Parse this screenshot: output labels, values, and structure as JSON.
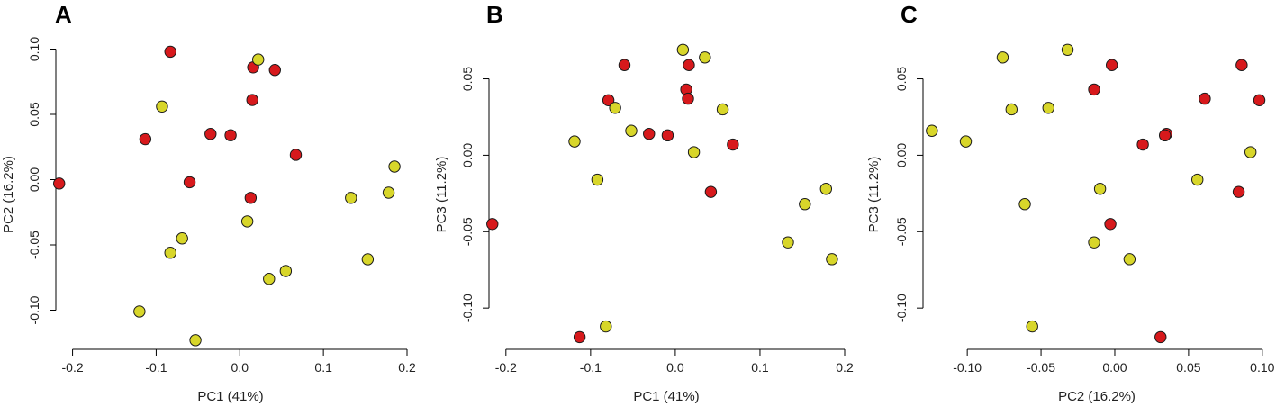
{
  "chart_data": [
    {
      "type": "scatter",
      "panel": "A",
      "xlabel": "PC1 (41%)",
      "ylabel": "PC2 (16.2%)",
      "xlim": [
        -0.22,
        0.2
      ],
      "ylim": [
        -0.13,
        0.11
      ],
      "xticks": [
        -0.2,
        -0.1,
        0.0,
        0.1,
        0.2
      ],
      "xtick_labels": [
        "-0.2",
        "-0.1",
        "0.0",
        "0.1",
        "0.2"
      ],
      "yticks": [
        -0.1,
        -0.05,
        0.0,
        0.05,
        0.1
      ],
      "ytick_labels": [
        "-0.10",
        "-0.05",
        "0.00",
        "0.05",
        "0.10"
      ],
      "grid": false,
      "series": [
        {
          "name": "red",
          "color": "#d7191c",
          "points": [
            [
              -0.083,
              0.098
            ],
            [
              0.016,
              0.086
            ],
            [
              0.042,
              0.084
            ],
            [
              0.015,
              0.061
            ],
            [
              -0.035,
              0.035
            ],
            [
              -0.011,
              0.034
            ],
            [
              -0.113,
              0.031
            ],
            [
              0.067,
              0.019
            ],
            [
              -0.216,
              -0.003
            ],
            [
              -0.06,
              -0.002
            ],
            [
              0.013,
              -0.014
            ]
          ]
        },
        {
          "name": "yellow",
          "color": "#d8d62a",
          "points": [
            [
              0.022,
              0.092
            ],
            [
              -0.093,
              0.056
            ],
            [
              0.185,
              0.01
            ],
            [
              0.178,
              -0.01
            ],
            [
              0.133,
              -0.014
            ],
            [
              0.009,
              -0.032
            ],
            [
              -0.069,
              -0.045
            ],
            [
              -0.083,
              -0.056
            ],
            [
              0.153,
              -0.061
            ],
            [
              0.055,
              -0.07
            ],
            [
              0.035,
              -0.076
            ],
            [
              -0.12,
              -0.101
            ],
            [
              -0.053,
              -0.123
            ]
          ]
        }
      ]
    },
    {
      "type": "scatter",
      "panel": "B",
      "xlabel": "PC1 (41%)",
      "ylabel": "PC3 (11.2%)",
      "xlim": [
        -0.22,
        0.2
      ],
      "ylim": [
        -0.127,
        0.078
      ],
      "xticks": [
        -0.2,
        -0.1,
        0.0,
        0.1,
        0.2
      ],
      "xtick_labels": [
        "-0.2",
        "-0.1",
        "0.0",
        "0.1",
        "0.2"
      ],
      "yticks": [
        -0.1,
        -0.05,
        0.0,
        0.05
      ],
      "ytick_labels": [
        "-0.10",
        "-0.05",
        "0.00",
        "0.05"
      ],
      "grid": false,
      "series": [
        {
          "name": "red",
          "color": "#d7191c",
          "points": [
            [
              -0.06,
              0.059
            ],
            [
              0.016,
              0.059
            ],
            [
              0.013,
              0.043
            ],
            [
              -0.079,
              0.036
            ],
            [
              0.015,
              0.037
            ],
            [
              -0.031,
              0.014
            ],
            [
              -0.009,
              0.013
            ],
            [
              0.068,
              0.007
            ],
            [
              0.042,
              -0.024
            ],
            [
              -0.216,
              -0.045
            ],
            [
              -0.113,
              -0.119
            ]
          ]
        },
        {
          "name": "yellow",
          "color": "#d8d62a",
          "points": [
            [
              0.009,
              0.069
            ],
            [
              0.035,
              0.064
            ],
            [
              -0.071,
              0.031
            ],
            [
              0.056,
              0.03
            ],
            [
              -0.052,
              0.016
            ],
            [
              -0.119,
              0.009
            ],
            [
              0.022,
              0.002
            ],
            [
              -0.092,
              -0.016
            ],
            [
              0.178,
              -0.022
            ],
            [
              0.153,
              -0.032
            ],
            [
              0.133,
              -0.057
            ],
            [
              0.185,
              -0.068
            ],
            [
              -0.082,
              -0.112
            ]
          ]
        }
      ]
    },
    {
      "type": "scatter",
      "panel": "C",
      "xlabel": "PC2 (16.2%)",
      "ylabel": "PC3 (11.2%)",
      "xlim": [
        -0.13,
        0.105
      ],
      "ylim": [
        -0.127,
        0.078
      ],
      "xticks": [
        -0.1,
        -0.05,
        0.0,
        0.05,
        0.1
      ],
      "xtick_labels": [
        "-0.10",
        "-0.05",
        "0.00",
        "0.05",
        "0.10"
      ],
      "yticks": [
        -0.1,
        -0.05,
        0.0,
        0.05
      ],
      "ytick_labels": [
        "-0.10",
        "-0.05",
        "0.00",
        "0.05"
      ],
      "grid": false,
      "series": [
        {
          "name": "red",
          "color": "#d7191c",
          "points": [
            [
              -0.002,
              0.059
            ],
            [
              0.086,
              0.059
            ],
            [
              -0.014,
              0.043
            ],
            [
              0.061,
              0.037
            ],
            [
              0.098,
              0.036
            ],
            [
              0.035,
              0.014
            ],
            [
              0.034,
              0.013
            ],
            [
              0.019,
              0.007
            ],
            [
              0.084,
              -0.024
            ],
            [
              -0.003,
              -0.045
            ],
            [
              0.031,
              -0.119
            ]
          ]
        },
        {
          "name": "yellow",
          "color": "#d8d62a",
          "points": [
            [
              -0.032,
              0.069
            ],
            [
              -0.076,
              0.064
            ],
            [
              -0.07,
              0.03
            ],
            [
              -0.045,
              0.031
            ],
            [
              -0.124,
              0.016
            ],
            [
              -0.101,
              0.009
            ],
            [
              0.092,
              0.002
            ],
            [
              0.056,
              -0.016
            ],
            [
              -0.01,
              -0.022
            ],
            [
              -0.061,
              -0.032
            ],
            [
              -0.014,
              -0.057
            ],
            [
              0.01,
              -0.068
            ],
            [
              -0.056,
              -0.112
            ]
          ]
        }
      ]
    }
  ]
}
